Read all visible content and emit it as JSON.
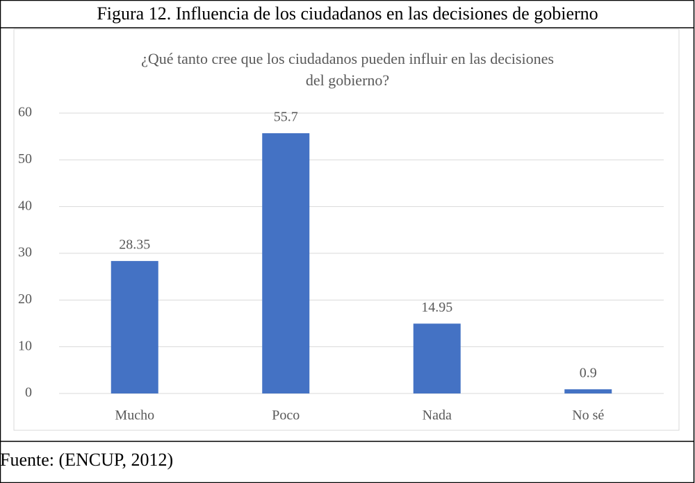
{
  "caption": "Figura 12. Influencia de los ciudadanos en las decisiones de gobierno",
  "source": "Fuente: (ENCUP, 2012)",
  "chart_data": {
    "type": "bar",
    "title": [
      "¿Qué tanto cree que los ciudadanos pueden influir en las decisiones",
      "del gobierno?"
    ],
    "categories": [
      "Mucho",
      "Poco",
      "Nada",
      "No sé"
    ],
    "values": [
      28.35,
      55.7,
      14.95,
      0.9
    ],
    "color": "#4472c4",
    "ylim": [
      0,
      60
    ],
    "yticks": [
      0,
      10,
      20,
      30,
      40,
      50,
      60
    ],
    "grid": true
  }
}
